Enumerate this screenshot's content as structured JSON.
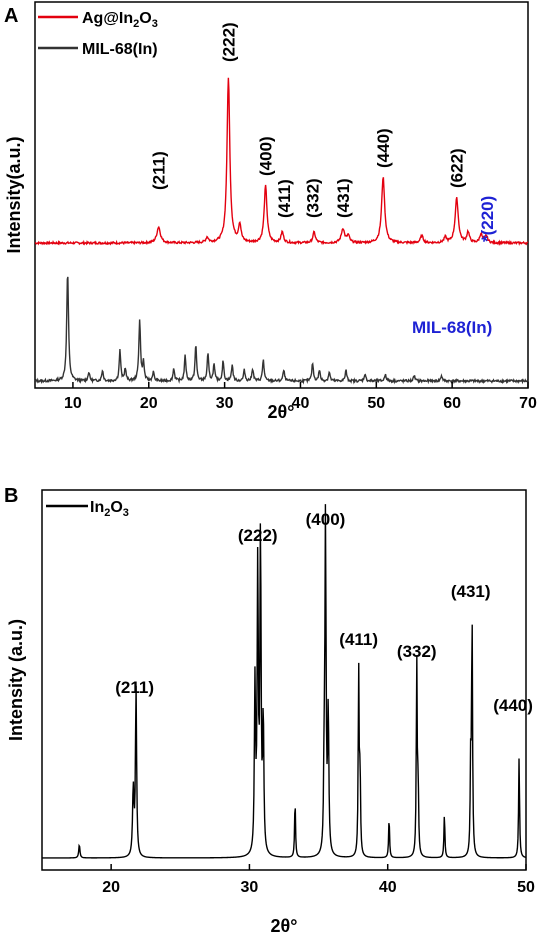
{
  "chart_data": [
    {
      "panel": "A",
      "type": "line",
      "xlabel": "2θ°",
      "ylabel": "Intensity(a.u.)",
      "xlim": [
        5,
        70
      ],
      "xticks": [
        "10",
        "20",
        "30",
        "40",
        "50",
        "60",
        "70"
      ],
      "grid": false,
      "legend": "top-left",
      "series": [
        {
          "name": "Ag@In2O3",
          "color": "#e3000f",
          "baseline": 0.0,
          "peaks": [
            {
              "x": 21.3,
              "h": 0.09,
              "w": 0.28
            },
            {
              "x": 27.7,
              "h": 0.03,
              "w": 0.2
            },
            {
              "x": 30.5,
              "h": 0.93,
              "w": 0.22
            },
            {
              "x": 32.0,
              "h": 0.1,
              "w": 0.2
            },
            {
              "x": 35.4,
              "h": 0.32,
              "w": 0.22
            },
            {
              "x": 37.6,
              "h": 0.06,
              "w": 0.2
            },
            {
              "x": 41.8,
              "h": 0.06,
              "w": 0.2
            },
            {
              "x": 45.6,
              "h": 0.08,
              "w": 0.25
            },
            {
              "x": 46.3,
              "h": 0.04,
              "w": 0.2
            },
            {
              "x": 50.9,
              "h": 0.37,
              "w": 0.24
            },
            {
              "x": 56.0,
              "h": 0.04,
              "w": 0.22
            },
            {
              "x": 59.1,
              "h": 0.03,
              "w": 0.2
            },
            {
              "x": 60.6,
              "h": 0.25,
              "w": 0.25
            },
            {
              "x": 62.1,
              "h": 0.06,
              "w": 0.2
            },
            {
              "x": 63.8,
              "h": 0.05,
              "w": 0.2
            },
            {
              "x": 64.5,
              "h": 0.04,
              "w": 0.2
            }
          ]
        },
        {
          "name": "MIL-68(In)",
          "color": "#333333",
          "baseline": 0.0,
          "peaks": [
            {
              "x": 9.3,
              "h": 0.61,
              "w": 0.14
            },
            {
              "x": 12.1,
              "h": 0.05,
              "w": 0.12
            },
            {
              "x": 13.9,
              "h": 0.06,
              "w": 0.12
            },
            {
              "x": 16.2,
              "h": 0.17,
              "w": 0.12
            },
            {
              "x": 16.9,
              "h": 0.07,
              "w": 0.12
            },
            {
              "x": 18.8,
              "h": 0.34,
              "w": 0.13
            },
            {
              "x": 19.3,
              "h": 0.1,
              "w": 0.12
            },
            {
              "x": 20.6,
              "h": 0.05,
              "w": 0.12
            },
            {
              "x": 23.3,
              "h": 0.07,
              "w": 0.12
            },
            {
              "x": 24.8,
              "h": 0.14,
              "w": 0.12
            },
            {
              "x": 26.2,
              "h": 0.2,
              "w": 0.12
            },
            {
              "x": 27.8,
              "h": 0.15,
              "w": 0.12
            },
            {
              "x": 28.6,
              "h": 0.09,
              "w": 0.12
            },
            {
              "x": 29.8,
              "h": 0.11,
              "w": 0.12
            },
            {
              "x": 31.0,
              "h": 0.09,
              "w": 0.12
            },
            {
              "x": 32.6,
              "h": 0.06,
              "w": 0.12
            },
            {
              "x": 33.7,
              "h": 0.07,
              "w": 0.12
            },
            {
              "x": 35.1,
              "h": 0.12,
              "w": 0.12
            },
            {
              "x": 37.8,
              "h": 0.06,
              "w": 0.12
            },
            {
              "x": 41.6,
              "h": 0.1,
              "w": 0.12
            },
            {
              "x": 42.5,
              "h": 0.06,
              "w": 0.12
            },
            {
              "x": 43.8,
              "h": 0.05,
              "w": 0.12
            },
            {
              "x": 46.0,
              "h": 0.06,
              "w": 0.12
            },
            {
              "x": 48.5,
              "h": 0.04,
              "w": 0.12
            },
            {
              "x": 51.2,
              "h": 0.04,
              "w": 0.12
            },
            {
              "x": 55.0,
              "h": 0.03,
              "w": 0.12
            },
            {
              "x": 58.6,
              "h": 0.03,
              "w": 0.12
            }
          ]
        }
      ],
      "annotations": [
        {
          "text": "(211)",
          "x": 21.3,
          "color": "#000000"
        },
        {
          "text": "(222)",
          "x": 30.5,
          "color": "#000000"
        },
        {
          "text": "(400)",
          "x": 35.4,
          "color": "#000000"
        },
        {
          "text": "(411)",
          "x": 37.8,
          "color": "#000000"
        },
        {
          "text": "(332)",
          "x": 41.6,
          "color": "#000000"
        },
        {
          "text": "(431)",
          "x": 45.6,
          "color": "#000000"
        },
        {
          "text": "(440)",
          "x": 50.9,
          "color": "#000000"
        },
        {
          "text": "(622)",
          "x": 60.6,
          "color": "#000000"
        },
        {
          "text": "*(220)",
          "x": 64.6,
          "color": "#1e22d4"
        },
        {
          "text": "MIL-68(In)",
          "x": 60.0,
          "color": "#1e22d4"
        }
      ]
    },
    {
      "panel": "B",
      "type": "line",
      "xlabel": "2θ°",
      "ylabel": "Intensity (a.u.)",
      "xlim": [
        15,
        50
      ],
      "xticks": [
        "20",
        "30",
        "40",
        "50"
      ],
      "grid": false,
      "legend": "top-left",
      "series": [
        {
          "name": "In2O3",
          "color": "#000000",
          "peaks": [
            {
              "x": 17.7,
              "h": 0.04,
              "w": 0.05
            },
            {
              "x": 21.6,
              "h": 0.2,
              "w": 0.06
            },
            {
              "x": 21.8,
              "h": 0.5,
              "w": 0.05
            },
            {
              "x": 30.4,
              "h": 0.5,
              "w": 0.05
            },
            {
              "x": 30.6,
              "h": 0.84,
              "w": 0.05
            },
            {
              "x": 30.8,
              "h": 0.95,
              "w": 0.05
            },
            {
              "x": 31.0,
              "h": 0.4,
              "w": 0.05
            },
            {
              "x": 33.3,
              "h": 0.17,
              "w": 0.04
            },
            {
              "x": 35.4,
              "h": 0.23,
              "w": 0.04
            },
            {
              "x": 35.5,
              "h": 1.0,
              "w": 0.05
            },
            {
              "x": 35.7,
              "h": 0.42,
              "w": 0.05
            },
            {
              "x": 37.9,
              "h": 0.55,
              "w": 0.04
            },
            {
              "x": 38.0,
              "h": 0.24,
              "w": 0.04
            },
            {
              "x": 40.1,
              "h": 0.12,
              "w": 0.04
            },
            {
              "x": 42.1,
              "h": 0.58,
              "w": 0.04
            },
            {
              "x": 42.2,
              "h": 0.2,
              "w": 0.04
            },
            {
              "x": 44.1,
              "h": 0.13,
              "w": 0.04
            },
            {
              "x": 46.0,
              "h": 0.27,
              "w": 0.04
            },
            {
              "x": 46.1,
              "h": 0.71,
              "w": 0.04
            },
            {
              "x": 49.5,
              "h": 0.3,
              "w": 0.04
            }
          ]
        }
      ],
      "annotations": [
        {
          "text": "(211)",
          "x": 21.7,
          "color": "#000000"
        },
        {
          "text": "(222)",
          "x": 30.6,
          "color": "#000000"
        },
        {
          "text": "(400)",
          "x": 35.5,
          "color": "#000000"
        },
        {
          "text": "(411)",
          "x": 37.9,
          "color": "#000000"
        },
        {
          "text": "(332)",
          "x": 42.1,
          "color": "#000000"
        },
        {
          "text": "(431)",
          "x": 46.0,
          "color": "#000000"
        },
        {
          "text": "(440)",
          "x": 49.5,
          "color": "#000000"
        }
      ]
    }
  ]
}
